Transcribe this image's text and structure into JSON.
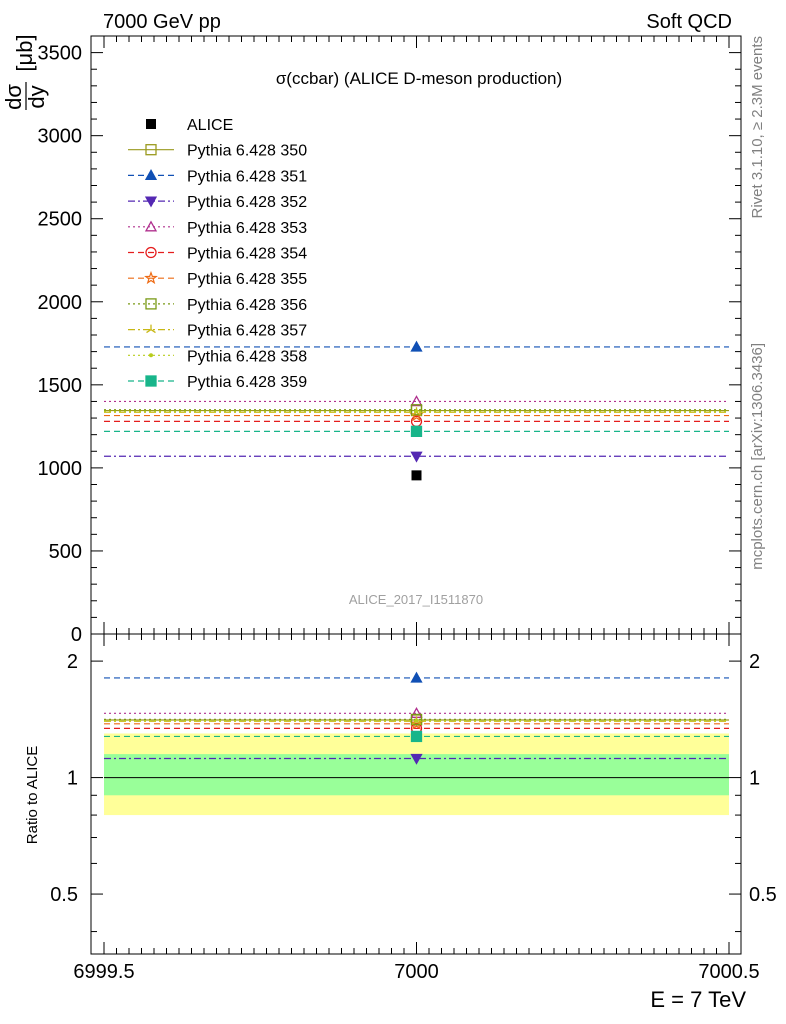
{
  "header": {
    "left": "7000 GeV pp",
    "right": "Soft QCD"
  },
  "side_text": {
    "rivet": "Rivet 3.1.10, ≥ 2.3M events",
    "mcplots": "mcplots.cern.ch [arXiv:1306.3436]"
  },
  "chart_data": {
    "type": "scatter",
    "title": "σ(ccbar) (ALICE D-meson production)",
    "analysis_label": "ALICE_2017_I1511870",
    "ylabel_num": "dσ",
    "ylabel_den": "dy",
    "ylabel_unit": "[μb]",
    "ratio_ylabel": "Ratio to ALICE",
    "xlabel": "E = 7 TeV",
    "xlim": [
      6999.5,
      7000.5
    ],
    "ylim": [
      0,
      3600
    ],
    "ratio_ylim": [
      0.35,
      2.35
    ],
    "ratio_scale": "log",
    "x_ticks": [
      "6999.5",
      "7000",
      "7000.5"
    ],
    "y_ticks": [
      "0",
      "500",
      "1000",
      "1500",
      "2000",
      "2500",
      "3000",
      "3500"
    ],
    "ratio_ticks": [
      "0.5",
      "1",
      "2"
    ],
    "data": {
      "name": "ALICE",
      "x": 7000,
      "y": 955,
      "color": "#000000",
      "ratio_band_inner": [
        0.9,
        1.15
      ],
      "ratio_band_outer": [
        0.8,
        1.3
      ],
      "inner_band_color": "#99ff99",
      "outer_band_color": "#ffff99"
    },
    "series": [
      {
        "name": "Pythia 6.428 350",
        "y": 1345,
        "color": "#9a9a1e",
        "marker": "square-open",
        "dash": "solid"
      },
      {
        "name": "Pythia 6.428 351",
        "y": 1728,
        "color": "#1150b5",
        "marker": "triangle-up-filled",
        "dash": "dashed"
      },
      {
        "name": "Pythia 6.428 352",
        "y": 1070,
        "color": "#5428b3",
        "marker": "triangle-down-filled",
        "dash": "dashdot"
      },
      {
        "name": "Pythia 6.428 353",
        "y": 1400,
        "color": "#b0308e",
        "marker": "triangle-up-open",
        "dash": "dotted"
      },
      {
        "name": "Pythia 6.428 354",
        "y": 1280,
        "color": "#e51d1d",
        "marker": "circle-open",
        "dash": "dashed"
      },
      {
        "name": "Pythia 6.428 355",
        "y": 1315,
        "color": "#ee6b15",
        "marker": "star-open",
        "dash": "dashed"
      },
      {
        "name": "Pythia 6.428 356",
        "y": 1350,
        "color": "#7a9a16",
        "marker": "square-open",
        "dash": "dotted"
      },
      {
        "name": "Pythia 6.428 357",
        "y": 1335,
        "color": "#c8b816",
        "marker": "tri-line",
        "dash": "dashdot"
      },
      {
        "name": "Pythia 6.428 358",
        "y": 1340,
        "color": "#b8cc1c",
        "marker": "dot",
        "dash": "dotted"
      },
      {
        "name": "Pythia 6.428 359",
        "y": 1220,
        "color": "#18b58a",
        "marker": "square-filled",
        "dash": "dashed"
      }
    ]
  }
}
